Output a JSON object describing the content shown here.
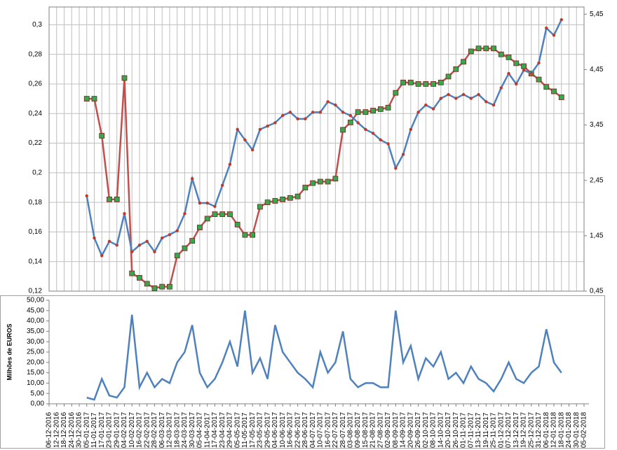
{
  "chart_data": [
    {
      "type": "line",
      "ylim": [
        0.12,
        0.312
      ],
      "yticks": [
        {
          "value": 0.12,
          "label": "0,12"
        },
        {
          "value": 0.14,
          "label": "0,14"
        },
        {
          "value": 0.16,
          "label": "0,16"
        },
        {
          "value": 0.18,
          "label": "0,18"
        },
        {
          "value": 0.2,
          "label": "0,2"
        },
        {
          "value": 0.22,
          "label": "0,22"
        },
        {
          "value": 0.24,
          "label": "0,24"
        },
        {
          "value": 0.26,
          "label": "0,26"
        },
        {
          "value": 0.28,
          "label": "0,28"
        },
        {
          "value": 0.3,
          "label": "0,3"
        }
      ],
      "y2lim": [
        0.45,
        5.58
      ],
      "y2ticks": [
        {
          "value": 0.45,
          "label": "0,45"
        },
        {
          "value": 1.45,
          "label": "1,45"
        },
        {
          "value": 2.45,
          "label": "2,45"
        },
        {
          "value": 3.45,
          "label": "3,45"
        },
        {
          "value": 4.45,
          "label": "4,45"
        },
        {
          "value": 5.45,
          "label": "5,45"
        }
      ],
      "grid": true,
      "series": [
        {
          "color": "#c0504d",
          "marker_color": "#3aa54a",
          "values": [
            null,
            null,
            null,
            null,
            null,
            0.25,
            0.25,
            0.225,
            0.182,
            0.182,
            0.264,
            0.132,
            0.129,
            0.125,
            0.122,
            0.123,
            0.123,
            0.144,
            0.149,
            0.154,
            0.163,
            0.169,
            0.172,
            0.172,
            0.172,
            0.165,
            0.158,
            0.158,
            0.177,
            0.18,
            0.181,
            0.182,
            0.183,
            0.184,
            0.19,
            0.193,
            0.194,
            0.194,
            0.196,
            0.229,
            0.234,
            0.241,
            0.241,
            0.242,
            0.243,
            0.244,
            0.254,
            0.261,
            0.261,
            0.26,
            0.26,
            0.26,
            0.261,
            0.265,
            0.27,
            0.275,
            0.282,
            0.284,
            0.284,
            0.284,
            0.28,
            0.278,
            0.274,
            0.272,
            0.267,
            0.263,
            0.258,
            0.255,
            0.251,
            null,
            null,
            null
          ]
        },
        {
          "color": "#4f81bd",
          "marker_color": "#c0392b",
          "axis": "y2",
          "values": [
            null,
            null,
            null,
            null,
            null,
            2.17,
            1.41,
            1.09,
            1.35,
            1.28,
            1.85,
            1.16,
            1.28,
            1.35,
            1.16,
            1.41,
            1.47,
            1.54,
            1.85,
            2.48,
            2.04,
            2.04,
            1.98,
            2.36,
            2.74,
            3.37,
            3.18,
            3.0,
            3.37,
            3.43,
            3.49,
            3.62,
            3.68,
            3.56,
            3.56,
            3.68,
            3.68,
            3.87,
            3.81,
            3.68,
            3.62,
            3.49,
            3.37,
            3.3,
            3.18,
            3.11,
            2.67,
            2.92,
            3.37,
            3.68,
            3.81,
            3.74,
            3.93,
            4.0,
            3.93,
            4.0,
            3.93,
            4.0,
            3.87,
            3.81,
            4.12,
            4.38,
            4.19,
            4.44,
            4.38,
            4.57,
            5.2,
            5.07,
            5.35,
            null,
            null,
            null
          ]
        }
      ]
    },
    {
      "type": "line",
      "y_label": "Milhões de EUROS",
      "categories": [
        "06-12-2016",
        "12-12-2016",
        "18-12-2016",
        "24-12-2016",
        "30-12-2016",
        "05-01-2017",
        "11-01-2017",
        "17-01-2017",
        "23-01-2017",
        "29-01-2017",
        "04-02-2017",
        "10-02-2017",
        "16-02-2017",
        "22-02-2017",
        "28-02-2017",
        "06-03-2017",
        "12-03-2017",
        "18-03-2017",
        "24-03-2017",
        "30-03-2017",
        "05-04-2017",
        "11-04-2017",
        "17-04-2017",
        "23-04-2017",
        "29-04-2017",
        "05-05-2017",
        "11-05-2017",
        "17-05-2017",
        "23-05-2017",
        "29-05-2017",
        "04-06-2017",
        "10-06-2017",
        "16-06-2017",
        "22-06-2017",
        "28-06-2017",
        "04-07-2017",
        "10-07-2017",
        "16-07-2017",
        "22-07-2017",
        "28-07-2017",
        "03-08-2017",
        "09-08-2017",
        "15-08-2017",
        "21-08-2017",
        "27-08-2017",
        "02-09-2017",
        "08-09-2017",
        "14-09-2017",
        "20-09-2017",
        "26-09-2017",
        "02-10-2017",
        "08-10-2017",
        "14-10-2017",
        "20-10-2017",
        "26-10-2017",
        "01-11-2017",
        "07-11-2017",
        "13-11-2017",
        "19-11-2017",
        "25-11-2017",
        "01-12-2017",
        "07-12-2017",
        "13-12-2017",
        "19-12-2017",
        "25-12-2017",
        "31-12-2017",
        "06-01-2018",
        "12-01-2018",
        "18-01-2018",
        "24-01-2018",
        "30-01-2018",
        "05-02-2018"
      ],
      "ylim": [
        0,
        50
      ],
      "yticks": [
        {
          "value": 0,
          "label": "0,00"
        },
        {
          "value": 5,
          "label": "5,00"
        },
        {
          "value": 10,
          "label": "10,00"
        },
        {
          "value": 15,
          "label": "15,00"
        },
        {
          "value": 20,
          "label": "20,00"
        },
        {
          "value": 25,
          "label": "25,00"
        },
        {
          "value": 30,
          "label": "30,00"
        },
        {
          "value": 35,
          "label": "35,00"
        },
        {
          "value": 40,
          "label": "40,00"
        },
        {
          "value": 45,
          "label": "45,00"
        },
        {
          "value": 50,
          "label": "50,00"
        }
      ],
      "color": "#4f81bd",
      "values": [
        null,
        null,
        null,
        null,
        null,
        3,
        2,
        12,
        4,
        3,
        8,
        43,
        8,
        15,
        8,
        12,
        10,
        20,
        25,
        38,
        15,
        8,
        12,
        20,
        30,
        18,
        45,
        15,
        22,
        12,
        38,
        25,
        20,
        15,
        12,
        8,
        25,
        15,
        20,
        35,
        12,
        8,
        10,
        10,
        8,
        8,
        45,
        20,
        28,
        12,
        22,
        18,
        25,
        12,
        15,
        10,
        18,
        12,
        10,
        6,
        12,
        20,
        12,
        10,
        15,
        18,
        36,
        20,
        15,
        null,
        null,
        null
      ]
    }
  ]
}
